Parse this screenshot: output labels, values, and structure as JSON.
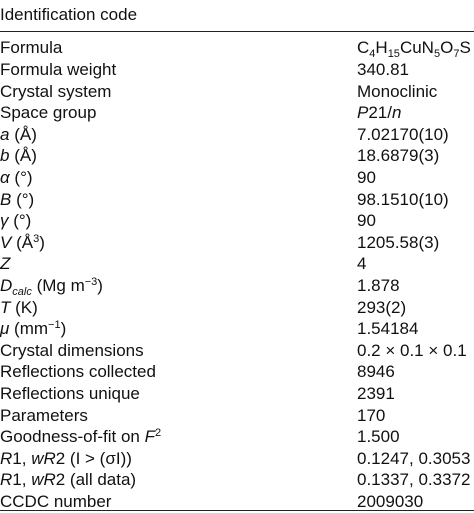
{
  "header": {
    "label": "Identification code"
  },
  "rows": [
    {
      "label": "Formula",
      "value": "C4H15CuN5O7S"
    },
    {
      "label": "Formula weight",
      "value": "340.81"
    },
    {
      "label": "Crystal system",
      "value": "Monoclinic"
    },
    {
      "label": "Space group",
      "value": "P21/n"
    },
    {
      "label": "a (Å)",
      "value": "7.02170(10)"
    },
    {
      "label": "b (Å)",
      "value": "18.6879(3)"
    },
    {
      "label": "α (°)",
      "value": "90"
    },
    {
      "label": "Β (°)",
      "value": "98.1510(10)"
    },
    {
      "label": "γ (°)",
      "value": "90"
    },
    {
      "label": "V (Å3)",
      "value": "1205.58(3)"
    },
    {
      "label": "Z",
      "value": "4"
    },
    {
      "label": "Dcalc (Mg m−3)",
      "value": "1.878"
    },
    {
      "label": "T (K)",
      "value": "293(2)"
    },
    {
      "label": "μ (mm−1)",
      "value": "1.54184"
    },
    {
      "label": "Crystal dimensions",
      "value": "0.2 × 0.1 × 0.1"
    },
    {
      "label": "Reflections collected",
      "value": "8946"
    },
    {
      "label": "Reflections unique",
      "value": "2391"
    },
    {
      "label": "Parameters",
      "value": "170"
    },
    {
      "label": "Goodness-of-fit on F2",
      "value": "1.500"
    },
    {
      "label": "R1, wR2 (I > (σI))",
      "value": "0.1247, 0.3053"
    },
    {
      "label": "R1, wR2 (all data)",
      "value": "0.1337, 0.3372"
    },
    {
      "label": "CCDC number",
      "value": "2009030"
    }
  ]
}
